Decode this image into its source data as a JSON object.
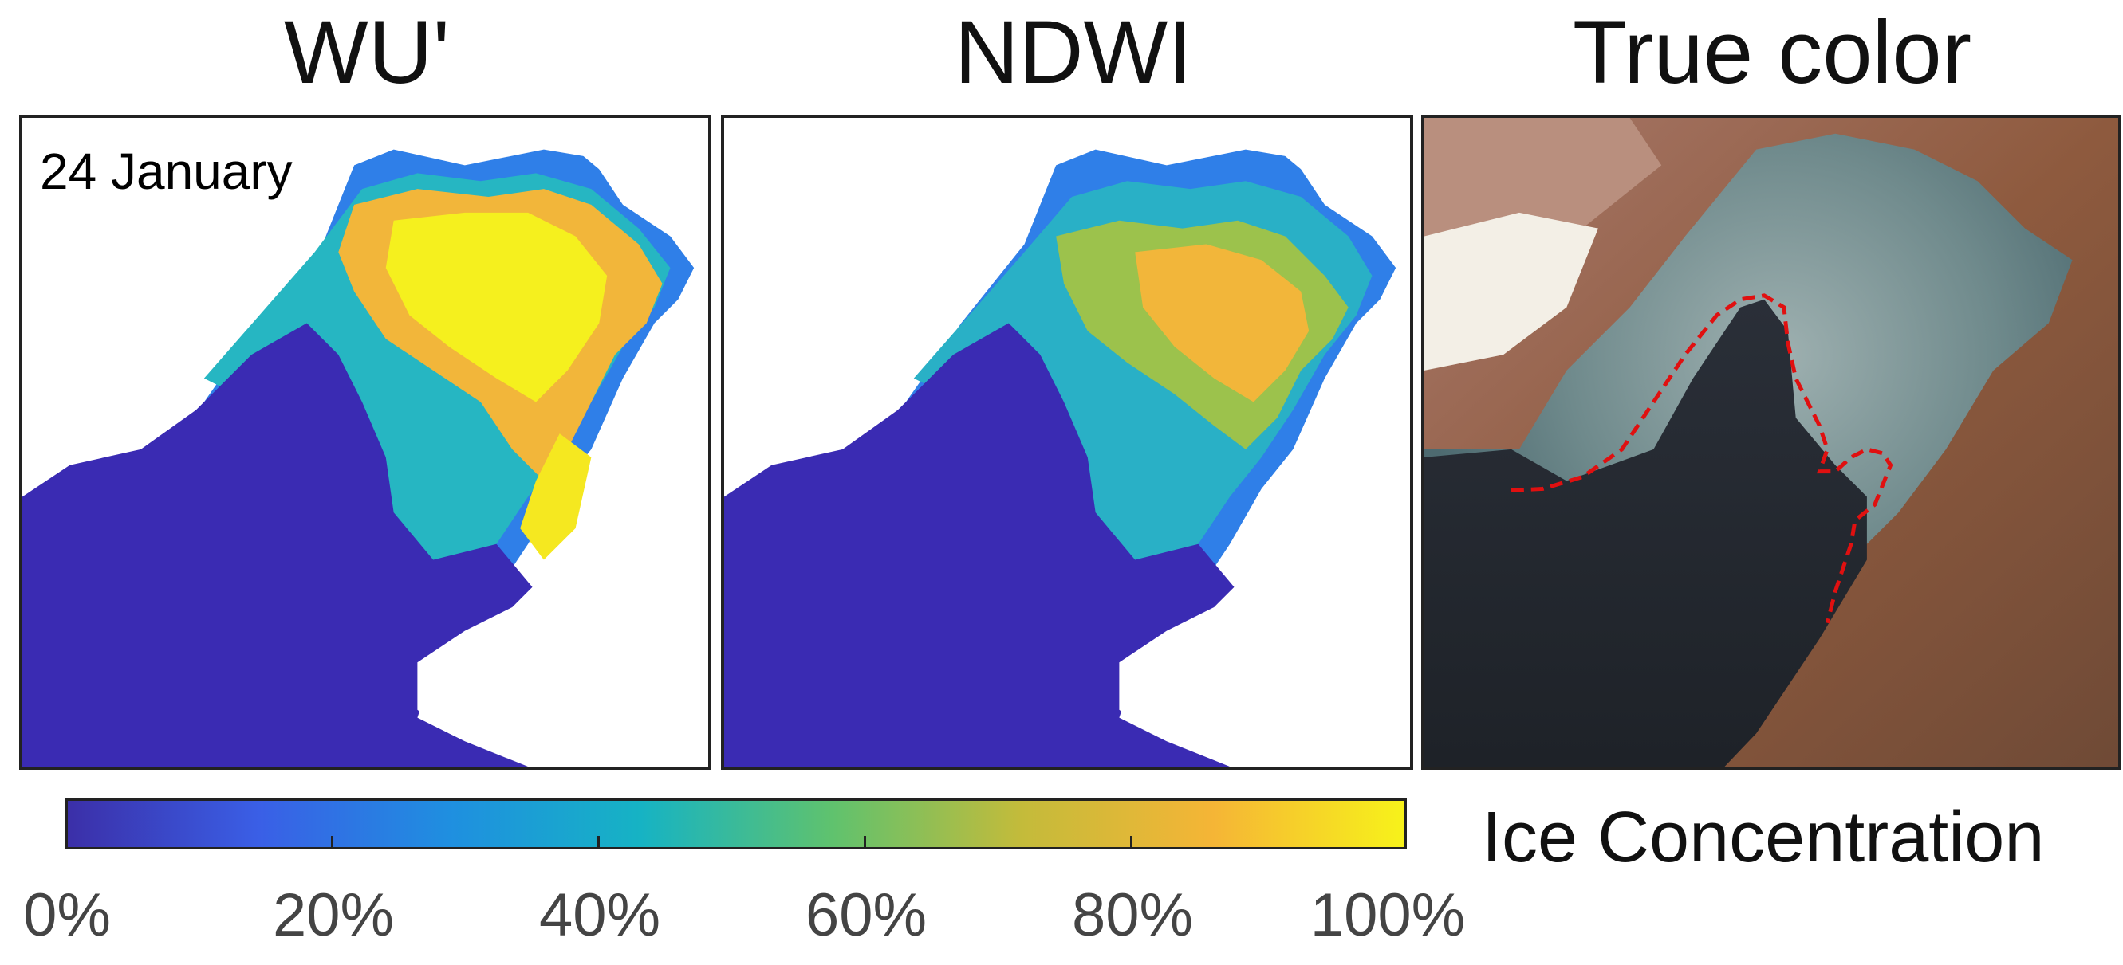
{
  "panels": [
    {
      "title": "WU'",
      "date": "24 January"
    },
    {
      "title": "NDWI"
    },
    {
      "title": "True color"
    }
  ],
  "colorbar": {
    "title": "Ice Concentration",
    "ticks": [
      "0%",
      "20%",
      "40%",
      "60%",
      "80%",
      "100%"
    ],
    "colormap": [
      "#3b2fa8",
      "#3a5fe6",
      "#1f8fe0",
      "#16b3c4",
      "#5fc26e",
      "#c4bb3a",
      "#f5b536",
      "#f7f21a"
    ]
  },
  "colors": {
    "open_water": "#3a2bb3",
    "land_mask": "#ffffff",
    "ice_high": "#f5f01e",
    "ice_mid": "#f2b63a",
    "ice_low": "#2f9de6",
    "ice_edge_outline": "#e01010"
  }
}
